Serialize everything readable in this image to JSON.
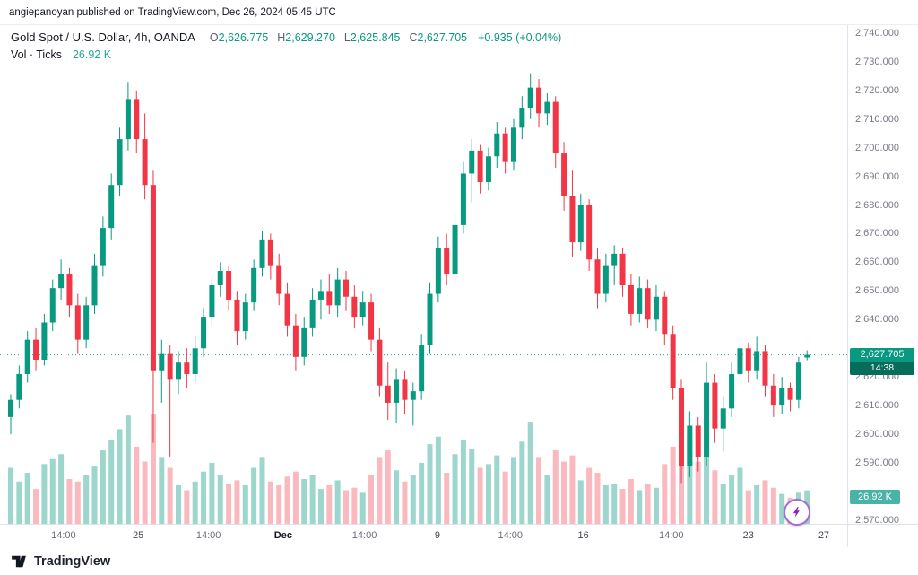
{
  "attribution": "angiepanoyan published on TradingView.com, Dec 26, 2024 05:45 UTC",
  "legend": {
    "symbol": "Gold Spot / U.S. Dollar, 4h, OANDA",
    "ohlc": [
      {
        "label": "O",
        "value": "2,626.775"
      },
      {
        "label": "H",
        "value": "2,629.270"
      },
      {
        "label": "L",
        "value": "2,625.845"
      },
      {
        "label": "C",
        "value": "2,627.705"
      }
    ],
    "change": "+0.935 (+0.04%)",
    "volume_label": "Vol · Ticks",
    "volume_value": "26.92 K"
  },
  "price_axis": {
    "labels": [
      "2,740.000",
      "2,730.000",
      "2,720.000",
      "2,710.000",
      "2,700.000",
      "2,690.000",
      "2,680.000",
      "2,670.000",
      "2,660.000",
      "2,650.000",
      "2,640.000",
      "2,620.000",
      "2,610.000",
      "2,600.000",
      "2,590.000",
      "2,570.000"
    ],
    "price_badge": {
      "price": "2,627.705",
      "countdown": "14:38"
    },
    "volume_badge": "26.92 K"
  },
  "footer": {
    "brand": "TradingView"
  },
  "colors": {
    "up": "#089981",
    "down": "#F23645",
    "vol_up": "rgba(8,153,129,0.40)",
    "vol_down": "rgba(242,54,69,0.35)",
    "axis_text": "#787b86",
    "badge_price_bg": "#089981",
    "badge_countdown_bg": "#076d5a",
    "badge_volume_bg": "rgba(42,166,152,0.85)",
    "boost_ring": "#a669d6",
    "boost_bolt": "#8e24aa"
  },
  "chart_data": {
    "type": "candlestick",
    "title": "Gold Spot / U.S. Dollar",
    "exchange": "OANDA",
    "interval": "4h",
    "price_top": 2742.8,
    "price_bottom": 2568.7,
    "last_price": 2627.705,
    "volume_scale_max": 90000,
    "legend_note": "candles are [open, high, low, close, volume_ticks]",
    "candles": [
      [
        2606,
        2614,
        2600,
        2612,
        45000
      ],
      [
        2612,
        2624,
        2609,
        2621,
        34000
      ],
      [
        2621,
        2636,
        2618,
        2633,
        41000
      ],
      [
        2633,
        2637,
        2622,
        2626,
        28000
      ],
      [
        2626,
        2642,
        2624,
        2639,
        48000
      ],
      [
        2639,
        2654,
        2636,
        2651,
        52000
      ],
      [
        2651,
        2661,
        2647,
        2656,
        56000
      ],
      [
        2656,
        2658,
        2641,
        2645,
        36000
      ],
      [
        2645,
        2649,
        2628,
        2633,
        34000
      ],
      [
        2633,
        2648,
        2630,
        2645,
        39000
      ],
      [
        2645,
        2663,
        2642,
        2659,
        46000
      ],
      [
        2659,
        2676,
        2655,
        2672,
        59000
      ],
      [
        2672,
        2691,
        2668,
        2687,
        67000
      ],
      [
        2687,
        2707,
        2683,
        2703,
        76000
      ],
      [
        2703,
        2723,
        2699,
        2717,
        87000
      ],
      [
        2717,
        2720,
        2698,
        2703,
        62000
      ],
      [
        2703,
        2712,
        2682,
        2687,
        50000
      ],
      [
        2687,
        2692,
        2597,
        2622,
        88000
      ],
      [
        2622,
        2633,
        2611,
        2628,
        53000
      ],
      [
        2628,
        2631,
        2592,
        2619,
        45000
      ],
      [
        2619,
        2629,
        2614,
        2625,
        31000
      ],
      [
        2625,
        2630,
        2616,
        2621,
        27000
      ],
      [
        2621,
        2634,
        2618,
        2630,
        34000
      ],
      [
        2630,
        2644,
        2627,
        2641,
        42000
      ],
      [
        2641,
        2655,
        2638,
        2652,
        49000
      ],
      [
        2652,
        2660,
        2648,
        2657,
        39000
      ],
      [
        2657,
        2659,
        2643,
        2647,
        32000
      ],
      [
        2647,
        2650,
        2631,
        2636,
        35000
      ],
      [
        2636,
        2649,
        2633,
        2646,
        31000
      ],
      [
        2646,
        2661,
        2643,
        2658,
        45000
      ],
      [
        2658,
        2671,
        2655,
        2668,
        53000
      ],
      [
        2668,
        2670,
        2654,
        2659,
        34000
      ],
      [
        2659,
        2663,
        2645,
        2649,
        31000
      ],
      [
        2649,
        2653,
        2634,
        2638,
        38000
      ],
      [
        2638,
        2642,
        2622,
        2627,
        42000
      ],
      [
        2627,
        2641,
        2624,
        2637,
        36000
      ],
      [
        2637,
        2651,
        2634,
        2647,
        39000
      ],
      [
        2647,
        2654,
        2640,
        2650,
        28000
      ],
      [
        2650,
        2656,
        2642,
        2645,
        31000
      ],
      [
        2645,
        2658,
        2641,
        2654,
        35000
      ],
      [
        2654,
        2657,
        2643,
        2648,
        27000
      ],
      [
        2648,
        2652,
        2637,
        2641,
        29000
      ],
      [
        2641,
        2650,
        2638,
        2646,
        25000
      ],
      [
        2646,
        2649,
        2629,
        2633,
        39000
      ],
      [
        2633,
        2637,
        2613,
        2617,
        53000
      ],
      [
        2617,
        2625,
        2605,
        2611,
        59000
      ],
      [
        2611,
        2623,
        2604,
        2619,
        43000
      ],
      [
        2619,
        2622,
        2607,
        2612,
        34000
      ],
      [
        2612,
        2618,
        2603,
        2615,
        39000
      ],
      [
        2615,
        2635,
        2612,
        2631,
        49000
      ],
      [
        2631,
        2653,
        2628,
        2649,
        64000
      ],
      [
        2649,
        2669,
        2646,
        2665,
        70000
      ],
      [
        2665,
        2670,
        2652,
        2656,
        41000
      ],
      [
        2656,
        2677,
        2653,
        2673,
        56000
      ],
      [
        2673,
        2695,
        2670,
        2691,
        67000
      ],
      [
        2691,
        2703,
        2681,
        2699,
        60000
      ],
      [
        2699,
        2701,
        2684,
        2688,
        45000
      ],
      [
        2688,
        2700,
        2685,
        2697,
        48000
      ],
      [
        2697,
        2709,
        2693,
        2705,
        55000
      ],
      [
        2705,
        2707,
        2691,
        2695,
        42000
      ],
      [
        2695,
        2710,
        2692,
        2707,
        53000
      ],
      [
        2707,
        2718,
        2703,
        2714,
        66000
      ],
      [
        2714,
        2726,
        2710,
        2721,
        82000
      ],
      [
        2721,
        2724,
        2707,
        2712,
        53000
      ],
      [
        2712,
        2719,
        2708,
        2716,
        39000
      ],
      [
        2716,
        2718,
        2693,
        2698,
        59000
      ],
      [
        2698,
        2702,
        2678,
        2683,
        50000
      ],
      [
        2683,
        2692,
        2662,
        2667,
        55000
      ],
      [
        2667,
        2684,
        2664,
        2680,
        35000
      ],
      [
        2680,
        2682,
        2657,
        2661,
        45000
      ],
      [
        2661,
        2665,
        2644,
        2649,
        41000
      ],
      [
        2649,
        2663,
        2646,
        2659,
        31000
      ],
      [
        2659,
        2666,
        2652,
        2663,
        32000
      ],
      [
        2663,
        2665,
        2648,
        2652,
        28000
      ],
      [
        2652,
        2656,
        2638,
        2642,
        36000
      ],
      [
        2642,
        2655,
        2639,
        2651,
        27000
      ],
      [
        2651,
        2654,
        2637,
        2640,
        32000
      ],
      [
        2640,
        2652,
        2636,
        2648,
        29000
      ],
      [
        2648,
        2650,
        2631,
        2635,
        48000
      ],
      [
        2635,
        2638,
        2612,
        2616,
        62000
      ],
      [
        2616,
        2619,
        2583,
        2589,
        85000
      ],
      [
        2589,
        2608,
        2585,
        2603,
        72000
      ],
      [
        2603,
        2606,
        2587,
        2592,
        50000
      ],
      [
        2592,
        2625,
        2589,
        2618,
        59000
      ],
      [
        2618,
        2621,
        2597,
        2602,
        43000
      ],
      [
        2602,
        2613,
        2594,
        2609,
        32000
      ],
      [
        2609,
        2625,
        2606,
        2621,
        39000
      ],
      [
        2621,
        2634,
        2617,
        2630,
        45000
      ],
      [
        2630,
        2632,
        2618,
        2622,
        27000
      ],
      [
        2622,
        2634,
        2619,
        2629,
        31000
      ],
      [
        2629,
        2631,
        2613,
        2617,
        35000
      ],
      [
        2617,
        2621,
        2606,
        2610,
        29000
      ],
      [
        2610,
        2620,
        2607,
        2616,
        24000
      ],
      [
        2616,
        2618,
        2608,
        2612,
        21000
      ],
      [
        2612,
        2627,
        2609,
        2625,
        25000
      ],
      [
        2626.775,
        2629.27,
        2625.845,
        2627.705,
        26920
      ]
    ],
    "x_ticks": [
      {
        "label": "14:00",
        "i": 6.3,
        "kind": "time"
      },
      {
        "label": "25",
        "i": 15.2,
        "kind": "day"
      },
      {
        "label": "14:00",
        "i": 23.6,
        "kind": "time"
      },
      {
        "label": "Dec",
        "i": 32.5,
        "kind": "month"
      },
      {
        "label": "14:00",
        "i": 42.2,
        "kind": "time"
      },
      {
        "label": "9",
        "i": 50.9,
        "kind": "day"
      },
      {
        "label": "14:00",
        "i": 59.6,
        "kind": "time"
      },
      {
        "label": "16",
        "i": 68.3,
        "kind": "day"
      },
      {
        "label": "14:00",
        "i": 78.8,
        "kind": "time"
      },
      {
        "label": "23",
        "i": 88,
        "kind": "day"
      },
      {
        "label": "27",
        "i": 97,
        "kind": "day"
      }
    ],
    "y_axis_range": [
      2570,
      2740
    ],
    "y_axis_step": 10
  }
}
